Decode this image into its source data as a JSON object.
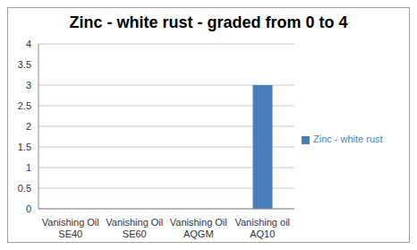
{
  "chart_data": {
    "type": "bar",
    "title": "Zinc - white rust - graded from 0 to 4",
    "categories": [
      "Vanishing Oil SE40",
      "Vanishing Oil SE60",
      "Vanishing Oil AQGM",
      "Vanishing oil AQ10"
    ],
    "series": [
      {
        "name": "Zinc - white rust",
        "color": "#4a7ebb",
        "values": [
          0,
          0,
          0,
          3
        ]
      }
    ],
    "ylim": [
      0,
      4
    ],
    "yticks": [
      0,
      0.5,
      1,
      1.5,
      2,
      2.5,
      3,
      3.5,
      4
    ],
    "grid": true,
    "legend": "right"
  }
}
